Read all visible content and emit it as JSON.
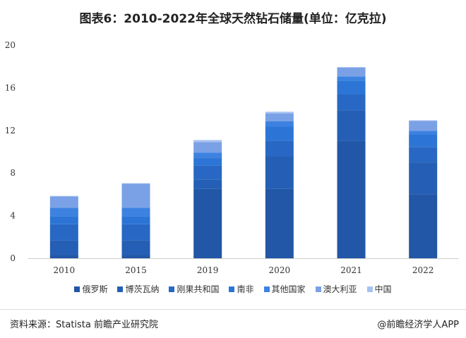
{
  "chart_data": {
    "type": "bar",
    "stacked": true,
    "title": "图表6：2010-2022年全球天然钻石储量(单位：亿克拉)",
    "categories": [
      "2010",
      "2015",
      "2019",
      "2020",
      "2021",
      "2022"
    ],
    "ylim": [
      0,
      20
    ],
    "yticks": [
      0,
      4,
      8,
      12,
      16,
      20
    ],
    "grid": false,
    "legend_position": "bottom",
    "series": [
      {
        "name": "俄罗斯",
        "color": "#2256a6",
        "values": [
          0.3,
          0.3,
          6.5,
          6.5,
          11.0,
          6.0
        ]
      },
      {
        "name": "博茨瓦纳",
        "color": "#245fb5",
        "values": [
          1.4,
          1.4,
          0.9,
          3.1,
          2.9,
          3.0
        ]
      },
      {
        "name": "刚果共和国",
        "color": "#2868c4",
        "values": [
          1.5,
          1.5,
          1.3,
          1.45,
          1.5,
          1.45
        ]
      },
      {
        "name": "南非",
        "color": "#2c75d6",
        "values": [
          0.75,
          0.75,
          0.7,
          1.3,
          1.25,
          1.2
        ]
      },
      {
        "name": "其他国家",
        "color": "#3d82e0",
        "values": [
          0.8,
          0.8,
          0.5,
          0.5,
          0.4,
          0.3
        ]
      },
      {
        "name": "澳大利亚",
        "color": "#7aa1e6",
        "values": [
          1.05,
          2.25,
          1.0,
          0.75,
          0.85,
          0.95
        ]
      },
      {
        "name": "中国",
        "color": "#a8c2f0",
        "values": [
          0.05,
          0.05,
          0.2,
          0.15,
          0.05,
          0.05
        ]
      }
    ]
  },
  "footer": {
    "source": "资料来源：Statista 前瞻产业研究院",
    "brand": "@前瞻经济学人APP"
  }
}
